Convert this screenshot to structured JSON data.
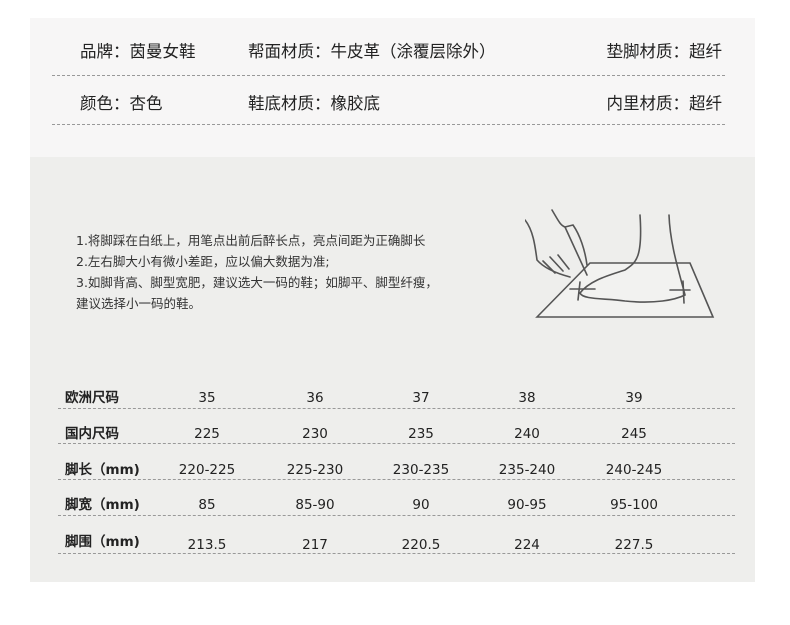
{
  "attributes": [
    [
      {
        "text": "品牌：茵曼女鞋"
      },
      {
        "text": "帮面材质：牛皮革（涂覆层除外）"
      },
      {
        "text": "垫脚材质：超纤"
      }
    ],
    [
      {
        "text": "颜色：杏色"
      },
      {
        "text": "鞋底材质：橡胶底"
      },
      {
        "text": "内里材质：超纤"
      }
    ]
  ],
  "instructions": [
    "1.将脚踩在白纸上，用笔点出前后醉长点，亮点间距为正确脚长",
    "2.左右脚大小有微小差距，应以偏大数据为准;",
    "3.如脚背高、脚型宽肥，建议选大一码的鞋；如脚平、脚型纤瘦，",
    "建议选择小一码的鞋。"
  ],
  "illustration": "foot-measurement-drawing",
  "size_table": [
    {
      "label": "欧洲尺码",
      "values": [
        "35",
        "36",
        "37",
        "38",
        "39"
      ]
    },
    {
      "label": "国内尺码",
      "values": [
        "225",
        "230",
        "235",
        "240",
        "245"
      ]
    },
    {
      "label": "脚长（mm)",
      "values": [
        "220-225",
        "225-230",
        "230-235",
        "235-240",
        "240-245"
      ]
    },
    {
      "label": "脚宽（mm)",
      "values": [
        "85",
        "85-90",
        "90",
        "90-95",
        "95-100"
      ]
    },
    {
      "label": "脚围（mm)",
      "values": [
        "213.5",
        "217",
        "220.5",
        "224",
        "227.5"
      ]
    }
  ]
}
